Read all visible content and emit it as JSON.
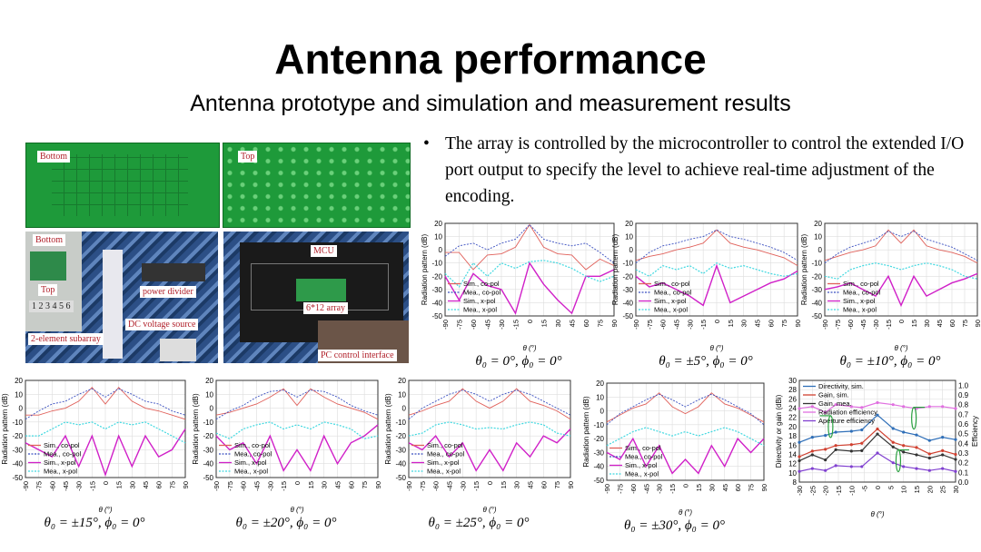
{
  "slide": {
    "title": "Antenna performance",
    "subtitle": "Antenna prototype and simulation and measurement results",
    "bullet": "The array is controlled by the microcontroller to control the extended I/O port output to specify the level to achieve real-time adjustment of the encoding."
  },
  "photos": {
    "board_bottom_label": "Bottom",
    "board_top_label": "Top",
    "setup_labels": {
      "bottom": "Bottom",
      "top": "Top",
      "numbers": "1 2 3 4 5 6",
      "subarray": "2-element subarray",
      "power_divider": "power divider",
      "dc_source": "DC voltage source"
    },
    "controller_labels": {
      "mcu": "MCU",
      "array": "6*12 array",
      "pc": "PC control interface"
    }
  },
  "colors": {
    "sim_co": "#e0605a",
    "mea_co": "#3a4fc0",
    "sim_x": "#d020c8",
    "mea_x": "#40d8e0",
    "directivity": "#2f6fb8",
    "gain_sim": "#d04030",
    "gain_mea": "#333333",
    "rad_eff": "#e070e0",
    "ap_eff": "#8040d0",
    "arrow": "#2aa040"
  },
  "chart_data": [
    {
      "type": "line",
      "ylabel": "Radiation pattern (dB)",
      "xlabel": "θ (°)",
      "ylim": [
        -50,
        20
      ],
      "yticks": [
        20,
        10,
        0,
        -10,
        -20,
        -30,
        -40,
        -50
      ],
      "xlim": [
        -90,
        90
      ],
      "xticks": [
        -90,
        -75,
        -60,
        -45,
        -30,
        -15,
        0,
        15,
        30,
        45,
        60,
        75,
        90
      ],
      "grid": true,
      "legend": "bottom-left",
      "caption": "θ₀ = 0°, ϕ₀ = 0°",
      "x": [
        -90,
        -75,
        -60,
        -45,
        -30,
        -15,
        0,
        15,
        30,
        45,
        60,
        75,
        90
      ],
      "series": [
        {
          "name": "Sim., co-pol",
          "values": [
            -2,
            -2,
            -15,
            -4,
            -3,
            2,
            19,
            2,
            -3,
            -4,
            -15,
            -7,
            -12
          ]
        },
        {
          "name": "Mea., co-pol",
          "values": [
            -5,
            3,
            5,
            0,
            5,
            8,
            19,
            8,
            5,
            3,
            5,
            -2,
            -10
          ]
        },
        {
          "name": "Sim., x-pol",
          "values": [
            -20,
            -38,
            -18,
            -27,
            -30,
            -48,
            -10,
            -26,
            -38,
            -48,
            -20,
            -20,
            -15
          ]
        },
        {
          "name": "Mea., x-pol",
          "values": [
            -18,
            -28,
            -10,
            -20,
            -10,
            -14,
            -9,
            -8,
            -10,
            -14,
            -20,
            -24,
            -20
          ]
        }
      ]
    },
    {
      "type": "line",
      "ylabel": "Radiation pattern (dB)",
      "xlabel": "θ (°)",
      "ylim": [
        -50,
        20
      ],
      "yticks": [
        20,
        10,
        0,
        -10,
        -20,
        -30,
        -40,
        -50
      ],
      "xlim": [
        -90,
        90
      ],
      "xticks": [
        -90,
        -75,
        -60,
        -45,
        -30,
        -15,
        0,
        15,
        30,
        45,
        60,
        75,
        90
      ],
      "grid": true,
      "legend": "bottom-left",
      "caption": "θ₀ = ±5°, ϕ₀ = 0°",
      "x": [
        -90,
        -75,
        -60,
        -45,
        -30,
        -15,
        0,
        15,
        30,
        45,
        60,
        75,
        90
      ],
      "series": [
        {
          "name": "Sim., co-pol",
          "values": [
            -8,
            -5,
            -3,
            0,
            2,
            5,
            15,
            5,
            2,
            0,
            -3,
            -6,
            -12
          ]
        },
        {
          "name": "Mea., co-pol",
          "values": [
            -10,
            -2,
            3,
            5,
            8,
            10,
            15,
            10,
            8,
            5,
            2,
            -2,
            -8
          ]
        },
        {
          "name": "Sim., x-pol",
          "values": [
            -20,
            -28,
            -25,
            -30,
            -35,
            -42,
            -12,
            -40,
            -35,
            -30,
            -25,
            -22,
            -16
          ]
        },
        {
          "name": "Mea., x-pol",
          "values": [
            -15,
            -20,
            -12,
            -15,
            -12,
            -18,
            -10,
            -14,
            -12,
            -15,
            -18,
            -20,
            -18
          ]
        }
      ]
    },
    {
      "type": "line",
      "ylabel": "Radiation pattern (dB)",
      "xlabel": "θ (°)",
      "ylim": [
        -50,
        20
      ],
      "yticks": [
        20,
        10,
        0,
        -10,
        -20,
        -30,
        -40,
        -50
      ],
      "xlim": [
        -90,
        90
      ],
      "xticks": [
        -90,
        -75,
        -60,
        -45,
        -30,
        -15,
        0,
        15,
        30,
        45,
        60,
        75,
        90
      ],
      "grid": true,
      "legend": "bottom-left",
      "caption": "θ₀ = ±10°, ϕ₀ = 0°",
      "x": [
        -90,
        -75,
        -60,
        -45,
        -30,
        -15,
        0,
        15,
        30,
        45,
        60,
        75,
        90
      ],
      "series": [
        {
          "name": "Sim., co-pol",
          "values": [
            -8,
            -5,
            -2,
            0,
            3,
            15,
            5,
            15,
            3,
            0,
            -2,
            -5,
            -10
          ]
        },
        {
          "name": "Mea., co-pol",
          "values": [
            -10,
            -3,
            2,
            5,
            8,
            14,
            10,
            14,
            8,
            5,
            2,
            -3,
            -8
          ]
        },
        {
          "name": "Sim., x-pol",
          "values": [
            -30,
            -28,
            -25,
            -30,
            -35,
            -20,
            -42,
            -20,
            -35,
            -30,
            -25,
            -22,
            -18
          ]
        },
        {
          "name": "Mea., x-pol",
          "values": [
            -20,
            -22,
            -15,
            -12,
            -10,
            -12,
            -15,
            -12,
            -10,
            -12,
            -15,
            -20,
            -22
          ]
        }
      ]
    },
    {
      "type": "line",
      "ylabel": "Radiation pattern (dB)",
      "xlabel": "θ (°)",
      "ylim": [
        -50,
        20
      ],
      "yticks": [
        20,
        10,
        0,
        -10,
        -20,
        -30,
        -40,
        -50
      ],
      "xlim": [
        -90,
        90
      ],
      "xticks": [
        -90,
        -75,
        -60,
        -45,
        -30,
        -15,
        0,
        15,
        30,
        45,
        60,
        75,
        90
      ],
      "grid": true,
      "legend": "bottom-left",
      "caption": "θ₀ = ±15°, ϕ₀ = 0°",
      "x": [
        -90,
        -75,
        -60,
        -45,
        -30,
        -15,
        0,
        15,
        30,
        45,
        60,
        75,
        90
      ],
      "series": [
        {
          "name": "Sim., co-pol",
          "values": [
            -5,
            -5,
            -2,
            0,
            5,
            15,
            3,
            15,
            5,
            0,
            -2,
            -5,
            -8
          ]
        },
        {
          "name": "Mea., co-pol",
          "values": [
            -8,
            -2,
            3,
            5,
            10,
            14,
            8,
            14,
            10,
            5,
            3,
            -2,
            -5
          ]
        },
        {
          "name": "Sim., x-pol",
          "values": [
            -25,
            -30,
            -35,
            -20,
            -42,
            -20,
            -48,
            -20,
            -42,
            -20,
            -35,
            -30,
            -15
          ]
        },
        {
          "name": "Mea., x-pol",
          "values": [
            -20,
            -20,
            -15,
            -10,
            -12,
            -10,
            -15,
            -10,
            -12,
            -10,
            -15,
            -20,
            -25
          ]
        }
      ]
    },
    {
      "type": "line",
      "ylabel": "Radiation pattern (dB)",
      "xlabel": "θ (°)",
      "ylim": [
        -50,
        20
      ],
      "yticks": [
        20,
        10,
        0,
        -10,
        -20,
        -30,
        -40,
        -50
      ],
      "xlim": [
        -90,
        90
      ],
      "xticks": [
        -90,
        -75,
        -60,
        -45,
        -30,
        -15,
        0,
        15,
        30,
        45,
        60,
        75,
        90
      ],
      "grid": true,
      "legend": "bottom-left",
      "caption": "θ₀ = ±20°, ϕ₀ = 0°",
      "x": [
        -90,
        -75,
        -60,
        -45,
        -30,
        -15,
        0,
        15,
        30,
        45,
        60,
        75,
        90
      ],
      "series": [
        {
          "name": "Sim., co-pol",
          "values": [
            -5,
            -3,
            0,
            3,
            8,
            14,
            2,
            14,
            8,
            3,
            0,
            -3,
            -8
          ]
        },
        {
          "name": "Mea., co-pol",
          "values": [
            -8,
            -2,
            2,
            8,
            12,
            13,
            8,
            13,
            12,
            8,
            2,
            -2,
            -5
          ]
        },
        {
          "name": "Sim., x-pol",
          "values": [
            -20,
            -30,
            -25,
            -40,
            -20,
            -45,
            -30,
            -45,
            -20,
            -40,
            -25,
            -20,
            -12
          ]
        },
        {
          "name": "Mea., x-pol",
          "values": [
            -18,
            -22,
            -15,
            -12,
            -10,
            -15,
            -12,
            -15,
            -10,
            -12,
            -15,
            -22,
            -20
          ]
        }
      ]
    },
    {
      "type": "line",
      "ylabel": "Radiation pattern (dB)",
      "xlabel": "θ (°)",
      "ylim": [
        -50,
        20
      ],
      "yticks": [
        20,
        10,
        0,
        -10,
        -20,
        -30,
        -40,
        -50
      ],
      "xlim": [
        -90,
        90
      ],
      "xticks": [
        -90,
        -75,
        -60,
        -45,
        -30,
        -15,
        0,
        15,
        30,
        45,
        60,
        75,
        90
      ],
      "grid": true,
      "legend": "bottom-left",
      "caption": "θ₀ = ±25°, ϕ₀ = 0°",
      "x": [
        -90,
        -75,
        -60,
        -45,
        -30,
        -15,
        0,
        15,
        30,
        45,
        60,
        75,
        90
      ],
      "series": [
        {
          "name": "Sim., co-pol",
          "values": [
            -5,
            -2,
            2,
            5,
            14,
            5,
            0,
            5,
            14,
            5,
            2,
            -2,
            -8
          ]
        },
        {
          "name": "Mea., co-pol",
          "values": [
            -8,
            0,
            5,
            10,
            13,
            10,
            5,
            10,
            13,
            10,
            5,
            0,
            -5
          ]
        },
        {
          "name": "Sim., x-pol",
          "values": [
            -25,
            -30,
            -20,
            -35,
            -25,
            -45,
            -30,
            -45,
            -25,
            -35,
            -20,
            -25,
            -15
          ]
        },
        {
          "name": "Mea., x-pol",
          "values": [
            -20,
            -18,
            -12,
            -10,
            -12,
            -15,
            -14,
            -15,
            -12,
            -10,
            -12,
            -18,
            -20
          ]
        }
      ]
    },
    {
      "type": "line",
      "ylabel": "Radiation pattern (dB)",
      "xlabel": "θ (°)",
      "ylim": [
        -50,
        20
      ],
      "yticks": [
        20,
        10,
        0,
        -10,
        -20,
        -30,
        -40,
        -50
      ],
      "xlim": [
        -90,
        90
      ],
      "xticks": [
        -90,
        -75,
        -60,
        -45,
        -30,
        -15,
        0,
        15,
        30,
        45,
        60,
        75,
        90
      ],
      "grid": true,
      "legend": "bottom-left",
      "caption": "θ₀ = ±30°, ϕ₀ = 0°",
      "x": [
        -90,
        -75,
        -60,
        -45,
        -30,
        -15,
        0,
        15,
        30,
        45,
        60,
        75,
        90
      ],
      "series": [
        {
          "name": "Sim., co-pol",
          "values": [
            -8,
            -3,
            2,
            5,
            13,
            3,
            -2,
            3,
            13,
            5,
            2,
            -3,
            -8
          ]
        },
        {
          "name": "Mea., co-pol",
          "values": [
            -10,
            -2,
            3,
            8,
            12,
            8,
            3,
            8,
            12,
            8,
            3,
            -2,
            -10
          ]
        },
        {
          "name": "Sim., x-pol",
          "values": [
            -30,
            -35,
            -20,
            -40,
            -25,
            -45,
            -35,
            -45,
            -25,
            -40,
            -20,
            -30,
            -20
          ]
        },
        {
          "name": "Mea., x-pol",
          "values": [
            -25,
            -20,
            -15,
            -12,
            -15,
            -18,
            -15,
            -18,
            -15,
            -12,
            -15,
            -20,
            -25
          ]
        }
      ]
    },
    {
      "type": "line",
      "xlabel": "θ (°)",
      "ylabel": "Directivity or gain (dBi)",
      "y2label": "Efficiency",
      "ylim": [
        8,
        30
      ],
      "yticks": [
        8,
        10,
        12,
        14,
        16,
        18,
        20,
        22,
        24,
        26,
        28,
        30
      ],
      "y2lim": [
        0.0,
        1.05
      ],
      "y2ticks": [
        "0.0",
        "0.1",
        "0.2",
        "0.3",
        "0.4",
        "0.5",
        "0.6",
        "0.7",
        "0.8",
        "0.9",
        "1.0"
      ],
      "xlim": [
        -30,
        30
      ],
      "xticks": [
        -30,
        -25,
        -20,
        -15,
        -10,
        -5,
        0,
        5,
        10,
        15,
        20,
        25,
        30
      ],
      "grid": true,
      "legend": "top",
      "x": [
        -30,
        -25,
        -20,
        -16,
        -10,
        -6,
        0,
        6,
        10,
        15,
        20,
        25,
        30
      ],
      "series": [
        {
          "name": "Directivity, sim.",
          "axis": "left",
          "values": [
            16.6,
            17.7,
            18.1,
            18.8,
            19.0,
            19.3,
            22.5,
            19.6,
            18.8,
            18.2,
            17.0,
            17.7,
            17.2
          ]
        },
        {
          "name": "Gain, sim.",
          "axis": "left",
          "values": [
            13.5,
            14.7,
            15.1,
            15.9,
            16.1,
            16.4,
            19.5,
            16.6,
            15.9,
            15.5,
            14.1,
            14.8,
            14.0
          ]
        },
        {
          "name": "Gain, mea.",
          "axis": "left",
          "values": [
            12.6,
            13.9,
            12.8,
            15.0,
            14.7,
            14.8,
            18.4,
            15.6,
            14.5,
            13.9,
            13.2,
            13.9,
            12.9
          ]
        },
        {
          "name": "Radiation efficiency",
          "axis": "right",
          "values": [
            0.76,
            0.78,
            0.72,
            0.8,
            0.78,
            0.77,
            0.82,
            0.8,
            0.78,
            0.76,
            0.78,
            0.78,
            0.76
          ]
        },
        {
          "name": "Aperture efficiency",
          "axis": "right",
          "values": [
            0.11,
            0.14,
            0.12,
            0.17,
            0.16,
            0.16,
            0.3,
            0.2,
            0.16,
            0.14,
            0.12,
            0.14,
            0.11
          ]
        }
      ]
    }
  ]
}
